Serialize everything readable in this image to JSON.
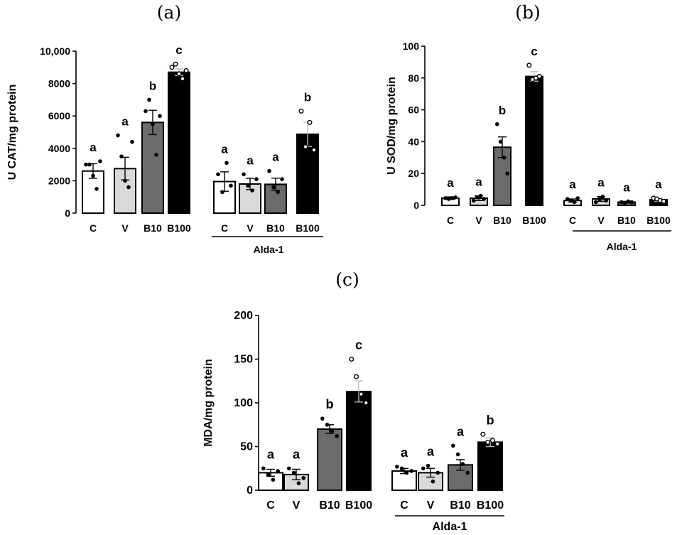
{
  "chart_data": [
    {
      "type": "bar",
      "panel_label": "(a)",
      "ylabel": "U CAT/mg protein",
      "ylim": [
        0,
        10000
      ],
      "yticks": [
        0,
        2000,
        4000,
        6000,
        8000,
        10000
      ],
      "ytick_labels": [
        "0",
        "2000",
        "4000",
        "6000",
        "8000",
        "10,000"
      ],
      "categories": [
        "C",
        "V",
        "B10",
        "B100",
        "C",
        "V",
        "B10",
        "B100"
      ],
      "group_label": "Alda-1",
      "values": [
        2600,
        2750,
        5600,
        8700,
        1950,
        1800,
        1780,
        4870
      ],
      "sem": [
        450,
        700,
        750,
        200,
        600,
        350,
        380,
        750
      ],
      "significance": [
        "a",
        "a",
        "b",
        "c",
        "a",
        "a",
        "a",
        "b"
      ],
      "fills": [
        "#ffffff",
        "#d9d9d9",
        "#6b6b6b",
        "#000000",
        "#ffffff",
        "#d9d9d9",
        "#6b6b6b",
        "#000000"
      ],
      "points": [
        [
          3000,
          3000,
          2300,
          1500,
          3200
        ],
        [
          4800,
          3500,
          2000,
          1600,
          4400
        ],
        [
          6300,
          7000,
          5500,
          3600,
          6000
        ],
        [
          9000,
          9200,
          8600,
          8300,
          8800
        ],
        [
          2400,
          1300,
          3100,
          1700
        ],
        [
          2400,
          1700,
          1400,
          2100
        ],
        [
          2600,
          1600,
          1300,
          2100
        ],
        [
          6300,
          4100,
          5600,
          3900
        ]
      ]
    },
    {
      "type": "bar",
      "panel_label": "(b)",
      "ylabel": "U SOD/mg protein",
      "ylim": [
        0,
        100
      ],
      "yticks": [
        0,
        20,
        40,
        60,
        80,
        100
      ],
      "ytick_labels": [
        "0",
        "20",
        "40",
        "60",
        "80",
        "100"
      ],
      "categories": [
        "C",
        "V",
        "B10",
        "B100",
        "C",
        "V",
        "B10",
        "B100"
      ],
      "group_label": "Alda-1",
      "values": [
        4.5,
        4.5,
        36.5,
        81,
        3,
        4,
        2,
        3.5
      ],
      "sem": [
        0.8,
        1.5,
        6.5,
        3,
        1,
        1.5,
        0.5,
        1
      ],
      "significance": [
        "a",
        "a",
        "b",
        "c",
        "a",
        "a",
        "a",
        "a"
      ],
      "fills": [
        "#ffffff",
        "#d9d9d9",
        "#6b6b6b",
        "#000000",
        "#ffffff",
        "#d9d9d9",
        "#6b6b6b",
        "#000000"
      ],
      "points": [
        [
          4.5,
          4,
          4.5,
          5
        ],
        [
          3,
          5,
          6,
          4
        ],
        [
          51,
          40,
          30,
          20
        ],
        [
          88,
          79,
          80,
          81
        ],
        [
          4,
          3,
          2,
          4.5
        ],
        [
          2,
          4,
          5.5,
          3
        ],
        [
          2,
          1.5,
          2.5,
          2
        ],
        [
          4.5,
          4,
          3,
          2.5
        ]
      ]
    },
    {
      "type": "bar",
      "panel_label": "(c)",
      "ylabel": "MDA/mg protein",
      "ylim": [
        0,
        200
      ],
      "yticks": [
        0,
        50,
        100,
        150,
        200
      ],
      "ytick_labels": [
        "0",
        "50",
        "100",
        "150",
        "200"
      ],
      "categories": [
        "C",
        "V",
        "B10",
        "B100",
        "C",
        "V",
        "B10",
        "B100"
      ],
      "group_label": "Alda-1",
      "values": [
        20,
        18,
        70,
        113,
        22,
        20,
        29,
        55
      ],
      "sem": [
        4,
        6,
        5,
        12,
        3,
        5,
        6,
        5
      ],
      "significance": [
        "a",
        "a",
        "b",
        "c",
        "a",
        "a",
        "a",
        "b"
      ],
      "fills": [
        "#ffffff",
        "#d9d9d9",
        "#6b6b6b",
        "#000000",
        "#ffffff",
        "#d9d9d9",
        "#6b6b6b",
        "#000000"
      ],
      "points": [
        [
          25,
          18,
          12,
          22
        ],
        [
          25,
          20,
          8,
          14
        ],
        [
          82,
          75,
          68,
          62
        ],
        [
          150,
          130,
          110,
          100
        ],
        [
          27,
          25,
          20,
          22
        ],
        [
          25,
          28,
          10,
          20
        ],
        [
          51,
          41,
          30,
          20
        ],
        [
          64,
          55,
          57,
          53
        ]
      ]
    }
  ]
}
